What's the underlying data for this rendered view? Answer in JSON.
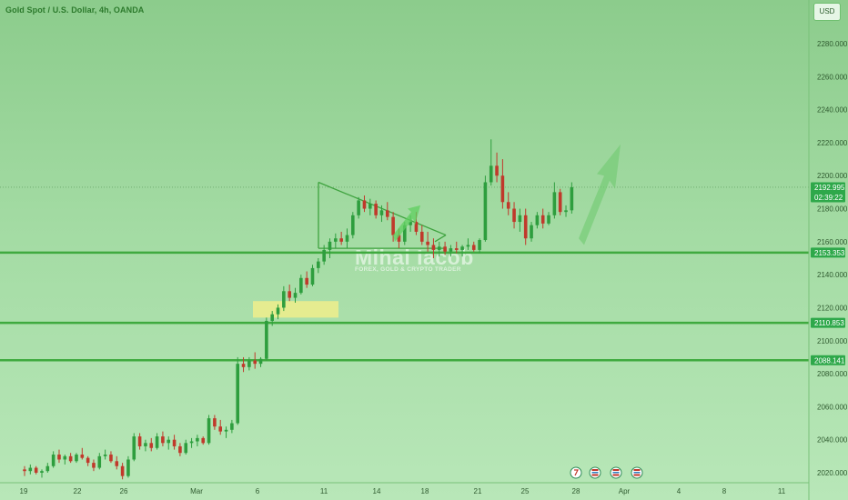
{
  "header": {
    "symbol_title": "Gold Spot / U.S. Dollar, 4h, OANDA",
    "currency_button": "USD"
  },
  "watermark": {
    "name": "Mihai Iacob",
    "tagline": "FOREX, GOLD & CRYPTO TRADER"
  },
  "colors": {
    "level_line": "#3faa3f",
    "candle_up": "#2e9e3e",
    "candle_down": "#c0392b",
    "last_price_tag": "#2ea84a",
    "zone_highlight": "#f0ee8c"
  },
  "chart_data": {
    "type": "candlestick",
    "y_axis": {
      "range": [
        2015,
        2300
      ],
      "ticks": [
        "2280.000",
        "2260.000",
        "2240.000",
        "2220.000",
        "2200.000",
        "2180.000",
        "2160.000",
        "2140.000",
        "2120.000",
        "2100.000",
        "2080.000",
        "2060.000",
        "2040.000",
        "2020.000"
      ]
    },
    "x_axis": {
      "ticks": [
        "19",
        "22",
        "26",
        "Mar",
        "6",
        "11",
        "14",
        "18",
        "21",
        "25",
        "28",
        "Apr",
        "4",
        "8",
        "11"
      ]
    },
    "last_price": "2192.995",
    "countdown": "02:39:22",
    "levels": [
      {
        "label": "2153.353",
        "value": 2153.353
      },
      {
        "label": "2110.853",
        "value": 2110.853
      },
      {
        "label": "2088.141",
        "value": 2088.141
      }
    ],
    "highlight_zone": {
      "price_from": 2114,
      "price_to": 2124
    },
    "grid": false,
    "annotations": [
      "descending triangle drawing",
      "small up-arrow (breakout)",
      "large projected up-arrow"
    ],
    "calendar_icons": [
      "flag-event-icon",
      "dividend-us-icon",
      "earnings-us-icon",
      "earnings-us-icon"
    ],
    "candles": [
      [
        2022,
        2024,
        2018,
        2021
      ],
      [
        2021,
        2025,
        2019,
        2023
      ],
      [
        2023,
        2024,
        2019,
        2020
      ],
      [
        2020,
        2022,
        2017,
        2021
      ],
      [
        2021,
        2026,
        2020,
        2024
      ],
      [
        2024,
        2033,
        2023,
        2031
      ],
      [
        2031,
        2034,
        2026,
        2028
      ],
      [
        2028,
        2031,
        2025,
        2030
      ],
      [
        2030,
        2032,
        2026,
        2027
      ],
      [
        2027,
        2032,
        2026,
        2031
      ],
      [
        2031,
        2035,
        2028,
        2029
      ],
      [
        2029,
        2030,
        2024,
        2026
      ],
      [
        2026,
        2028,
        2021,
        2023
      ],
      [
        2023,
        2032,
        2022,
        2030
      ],
      [
        2030,
        2034,
        2028,
        2031
      ],
      [
        2031,
        2033,
        2026,
        2027
      ],
      [
        2027,
        2030,
        2022,
        2024
      ],
      [
        2024,
        2026,
        2016,
        2018
      ],
      [
        2018,
        2030,
        2017,
        2028
      ],
      [
        2028,
        2044,
        2027,
        2042
      ],
      [
        2042,
        2044,
        2034,
        2036
      ],
      [
        2036,
        2040,
        2033,
        2038
      ],
      [
        2038,
        2041,
        2033,
        2035
      ],
      [
        2035,
        2044,
        2034,
        2042
      ],
      [
        2042,
        2045,
        2036,
        2038
      ],
      [
        2038,
        2042,
        2034,
        2040
      ],
      [
        2040,
        2043,
        2034,
        2036
      ],
      [
        2036,
        2038,
        2030,
        2032
      ],
      [
        2032,
        2040,
        2031,
        2038
      ],
      [
        2038,
        2041,
        2035,
        2039
      ],
      [
        2039,
        2043,
        2036,
        2041
      ],
      [
        2041,
        2042,
        2037,
        2038
      ],
      [
        2038,
        2055,
        2037,
        2053
      ],
      [
        2053,
        2055,
        2046,
        2048
      ],
      [
        2048,
        2052,
        2043,
        2045
      ],
      [
        2045,
        2048,
        2041,
        2046
      ],
      [
        2046,
        2052,
        2044,
        2050
      ],
      [
        2050,
        2090,
        2049,
        2086
      ],
      [
        2086,
        2090,
        2081,
        2084
      ],
      [
        2084,
        2090,
        2082,
        2088
      ],
      [
        2088,
        2093,
        2083,
        2086
      ],
      [
        2086,
        2090,
        2084,
        2089
      ],
      [
        2089,
        2114,
        2088,
        2112
      ],
      [
        2112,
        2118,
        2109,
        2116
      ],
      [
        2116,
        2122,
        2113,
        2120
      ],
      [
        2120,
        2133,
        2118,
        2130
      ],
      [
        2130,
        2134,
        2124,
        2126
      ],
      [
        2126,
        2132,
        2123,
        2129
      ],
      [
        2129,
        2140,
        2128,
        2138
      ],
      [
        2138,
        2142,
        2132,
        2134
      ],
      [
        2134,
        2146,
        2133,
        2144
      ],
      [
        2144,
        2150,
        2141,
        2148
      ],
      [
        2148,
        2158,
        2146,
        2155
      ],
      [
        2155,
        2162,
        2150,
        2160
      ],
      [
        2160,
        2165,
        2156,
        2162
      ],
      [
        2162,
        2166,
        2158,
        2160
      ],
      [
        2160,
        2168,
        2156,
        2164
      ],
      [
        2164,
        2178,
        2162,
        2176
      ],
      [
        2176,
        2187,
        2174,
        2185
      ],
      [
        2185,
        2188,
        2178,
        2180
      ],
      [
        2180,
        2186,
        2176,
        2183
      ],
      [
        2183,
        2185,
        2174,
        2176
      ],
      [
        2176,
        2182,
        2172,
        2179
      ],
      [
        2179,
        2184,
        2173,
        2175
      ],
      [
        2175,
        2178,
        2160,
        2164
      ],
      [
        2164,
        2168,
        2156,
        2160
      ],
      [
        2160,
        2172,
        2158,
        2170
      ],
      [
        2170,
        2176,
        2166,
        2172
      ],
      [
        2172,
        2178,
        2164,
        2166
      ],
      [
        2166,
        2170,
        2158,
        2160
      ],
      [
        2160,
        2166,
        2154,
        2158
      ],
      [
        2158,
        2162,
        2150,
        2155
      ],
      [
        2155,
        2160,
        2151,
        2157
      ],
      [
        2157,
        2160,
        2152,
        2154
      ],
      [
        2154,
        2158,
        2151,
        2156
      ],
      [
        2156,
        2160,
        2153,
        2155
      ],
      [
        2155,
        2158,
        2151,
        2157
      ],
      [
        2157,
        2162,
        2155,
        2158
      ],
      [
        2158,
        2160,
        2154,
        2155
      ],
      [
        2155,
        2162,
        2153,
        2161
      ],
      [
        2161,
        2200,
        2160,
        2196
      ],
      [
        2196,
        2222,
        2194,
        2206
      ],
      [
        2206,
        2214,
        2196,
        2200
      ],
      [
        2200,
        2210,
        2180,
        2184
      ],
      [
        2184,
        2190,
        2176,
        2180
      ],
      [
        2180,
        2184,
        2168,
        2172
      ],
      [
        2172,
        2180,
        2166,
        2176
      ],
      [
        2176,
        2180,
        2158,
        2162
      ],
      [
        2162,
        2172,
        2160,
        2170
      ],
      [
        2170,
        2178,
        2168,
        2176
      ],
      [
        2176,
        2180,
        2168,
        2171
      ],
      [
        2171,
        2178,
        2170,
        2176
      ],
      [
        2176,
        2196,
        2174,
        2190
      ],
      [
        2190,
        2192,
        2176,
        2178
      ],
      [
        2178,
        2182,
        2175,
        2179
      ],
      [
        2179,
        2196,
        2177,
        2193
      ]
    ]
  }
}
